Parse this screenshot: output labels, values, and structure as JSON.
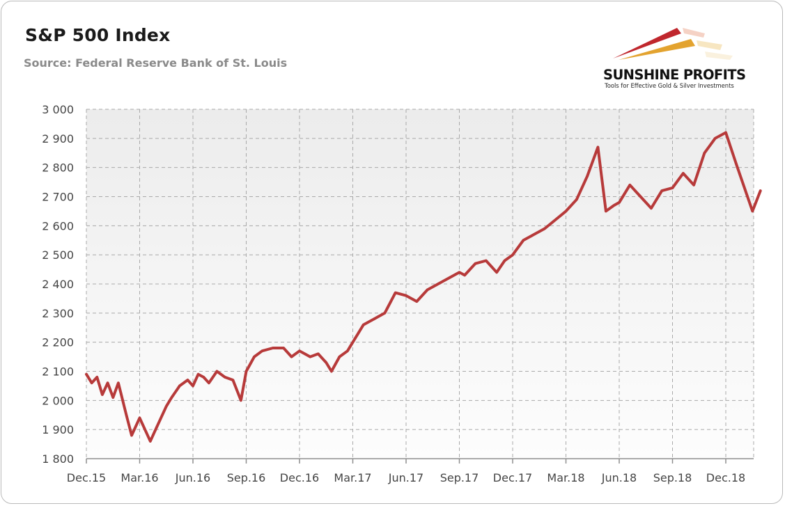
{
  "header": {
    "title": "S&P 500 Index",
    "subtitle": "Source: Federal Reserve Bank of St. Louis"
  },
  "logo": {
    "name": "SUNSHINE PROFITS",
    "tagline": "Tools for Effective Gold & Silver Investments",
    "colors": {
      "red": "#c0272d",
      "gold": "#e3a32f",
      "text": "#111111"
    }
  },
  "chart_data": {
    "type": "line",
    "title": "S&P 500 Index",
    "subtitle": "Source: Federal Reserve Bank of St. Louis",
    "xlabel": "",
    "ylabel": "",
    "ylim": [
      1800,
      3000
    ],
    "yticks": [
      1800,
      1900,
      2000,
      2100,
      2200,
      2300,
      2400,
      2500,
      2600,
      2700,
      2800,
      2900,
      3000
    ],
    "ytick_labels": [
      "1 800",
      "1 900",
      "2 000",
      "2 100",
      "2 200",
      "2 300",
      "2 400",
      "2 500",
      "2 600",
      "2 700",
      "2 800",
      "2 900",
      "3 000"
    ],
    "xticks": [
      "Dec.15",
      "Mar.16",
      "Jun.16",
      "Sep.16",
      "Dec.16",
      "Mar.17",
      "Jun.17",
      "Sep.17",
      "Dec.17",
      "Mar.18",
      "Jun.18",
      "Sep.18",
      "Dec.18"
    ],
    "grid": true,
    "line_color": "#b73a3a",
    "series": [
      {
        "name": "",
        "x": [
          0,
          0.1,
          0.2,
          0.3,
          0.4,
          0.5,
          0.6,
          0.75,
          0.85,
          1.0,
          1.2,
          1.3,
          1.5,
          1.6,
          1.75,
          1.9,
          2.0,
          2.1,
          2.2,
          2.3,
          2.45,
          2.6,
          2.75,
          2.9,
          3.0,
          3.15,
          3.3,
          3.5,
          3.7,
          3.85,
          4.0,
          4.2,
          4.35,
          4.5,
          4.6,
          4.75,
          4.9,
          5.0,
          5.2,
          5.4,
          5.6,
          5.8,
          6.0,
          6.2,
          6.4,
          6.6,
          6.8,
          7.0,
          7.1,
          7.3,
          7.5,
          7.7,
          7.85,
          8.0,
          8.2,
          8.4,
          8.6,
          8.8,
          9.0,
          9.2,
          9.4,
          9.6,
          9.75,
          9.9,
          10.0,
          10.2,
          10.4,
          10.6,
          10.8,
          11.0,
          11.2,
          11.4,
          11.6,
          11.8,
          12.0,
          12.2,
          12.35,
          12.5,
          12.65
        ],
        "y": [
          2090,
          2060,
          2080,
          2020,
          2060,
          2010,
          2060,
          1950,
          1880,
          1940,
          1860,
          1900,
          1980,
          2010,
          2050,
          2070,
          2050,
          2090,
          2080,
          2060,
          2100,
          2080,
          2070,
          2000,
          2100,
          2150,
          2170,
          2180,
          2180,
          2150,
          2170,
          2150,
          2160,
          2130,
          2100,
          2150,
          2170,
          2200,
          2260,
          2280,
          2300,
          2370,
          2360,
          2340,
          2380,
          2400,
          2420,
          2440,
          2430,
          2470,
          2480,
          2440,
          2480,
          2500,
          2550,
          2570,
          2590,
          2620,
          2650,
          2690,
          2770,
          2870,
          2650,
          2670,
          2680,
          2740,
          2700,
          2660,
          2720,
          2730,
          2780,
          2740,
          2850,
          2900,
          2920,
          2810,
          2730,
          2650,
          2720
        ]
      }
    ]
  }
}
